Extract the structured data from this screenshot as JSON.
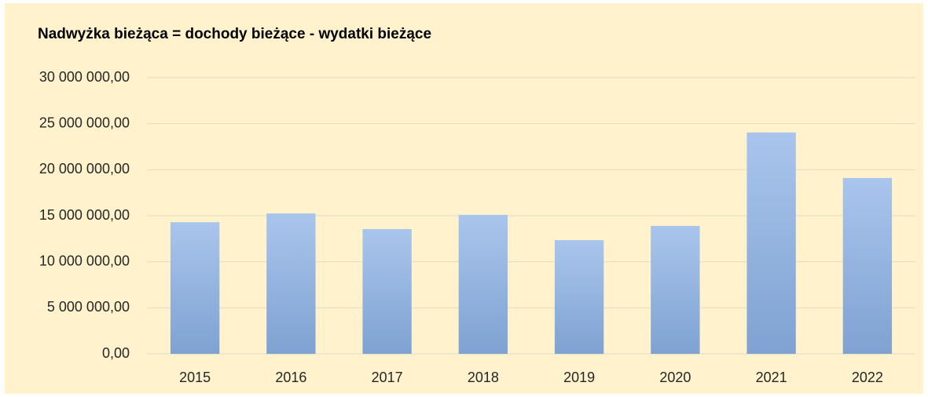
{
  "chart_data": {
    "type": "bar",
    "title": "Nadwyżka bieżąca = dochody bieżące - wydatki bieżące",
    "categories": [
      "2015",
      "2016",
      "2017",
      "2018",
      "2019",
      "2020",
      "2021",
      "2022"
    ],
    "values": [
      14300000,
      15250000,
      13550000,
      15100000,
      12350000,
      13900000,
      24050000,
      19100000
    ],
    "color": "#95b3de",
    "ylim": [
      0,
      30000000
    ],
    "yticks": [
      {
        "value": 0,
        "label": "0,00"
      },
      {
        "value": 5000000,
        "label": "5 000 000,00"
      },
      {
        "value": 10000000,
        "label": "10 000 000,00"
      },
      {
        "value": 15000000,
        "label": "15 000 000,00"
      },
      {
        "value": 20000000,
        "label": "20 000 000,00"
      },
      {
        "value": 25000000,
        "label": "25 000 000,00"
      },
      {
        "value": 30000000,
        "label": "30 000 000,00"
      }
    ],
    "grid": true
  }
}
